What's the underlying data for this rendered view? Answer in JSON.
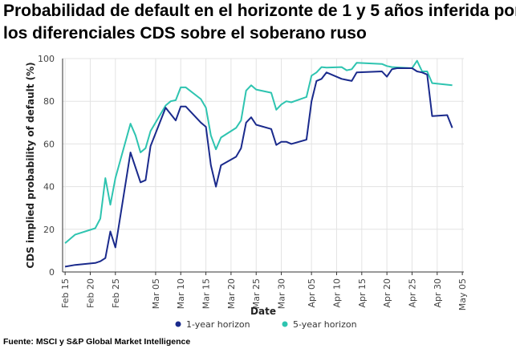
{
  "title_lines": [
    "Probabilidad de default en el horizonte de 1 y 5 años inferida por",
    "los diferenciales CDS sobre el soberano ruso"
  ],
  "source": "Fuente: MSCI y S&P Global Market Intelligence",
  "colors": {
    "one_year": "#1a2a8c",
    "five_year": "#2ec4b0",
    "grid": "#e3e3e3",
    "axis": "#333333"
  },
  "chart_data": {
    "type": "line",
    "xlabel": "Date",
    "ylabel": "CDS implied probability of default (%)",
    "ylim": [
      0,
      100
    ],
    "yticks": [
      0,
      20,
      40,
      60,
      80,
      100
    ],
    "grid": true,
    "legend_position": "bottom",
    "xticks": [
      "Feb 15",
      "Feb 20",
      "Feb 25",
      "Mar 05",
      "Mar 10",
      "Mar 15",
      "Mar 20",
      "Mar 25",
      "Mar 30",
      "Apr 05",
      "Apr 10",
      "Apr 15",
      "Apr 20",
      "Apr 25",
      "Apr 30",
      "May 05"
    ],
    "series": [
      {
        "name": "1-year horizon",
        "points": [
          [
            "Feb 15",
            2.5
          ],
          [
            "Feb 17",
            3.3
          ],
          [
            "Feb 21",
            4.2
          ],
          [
            "Feb 22",
            5
          ],
          [
            "Feb 23",
            6.5
          ],
          [
            "Feb 24",
            19
          ],
          [
            "Feb 25",
            11.5
          ],
          [
            "Feb 28",
            56
          ],
          [
            "Mar 02",
            42
          ],
          [
            "Mar 03",
            43
          ],
          [
            "Mar 04",
            59
          ],
          [
            "Mar 07",
            77
          ],
          [
            "Mar 09",
            71
          ],
          [
            "Mar 10",
            77.5
          ],
          [
            "Mar 11",
            77.5
          ],
          [
            "Mar 14",
            70
          ],
          [
            "Mar 15",
            68
          ],
          [
            "Mar 16",
            50
          ],
          [
            "Mar 17",
            40
          ],
          [
            "Mar 18",
            50
          ],
          [
            "Mar 21",
            54
          ],
          [
            "Mar 22",
            58
          ],
          [
            "Mar 23",
            70
          ],
          [
            "Mar 24",
            72.5
          ],
          [
            "Mar 25",
            69
          ],
          [
            "Mar 28",
            67
          ],
          [
            "Mar 29",
            59.5
          ],
          [
            "Mar 30",
            61
          ],
          [
            "Mar 31",
            61
          ],
          [
            "Apr 01",
            60
          ],
          [
            "Apr 04",
            62
          ],
          [
            "Apr 05",
            80
          ],
          [
            "Apr 06",
            89.5
          ],
          [
            "Apr 07",
            90.5
          ],
          [
            "Apr 08",
            93.5
          ],
          [
            "Apr 11",
            90.5
          ],
          [
            "Apr 12",
            90
          ],
          [
            "Apr 13",
            89.5
          ],
          [
            "Apr 14",
            93.5
          ],
          [
            "Apr 19",
            94
          ],
          [
            "Apr 20",
            91.5
          ],
          [
            "Apr 21",
            95
          ],
          [
            "Apr 22",
            95.5
          ],
          [
            "Apr 25",
            95.5
          ],
          [
            "Apr 26",
            94
          ],
          [
            "Apr 27",
            93.5
          ],
          [
            "Apr 28",
            92.5
          ],
          [
            "Apr 29",
            73
          ],
          [
            "May 02",
            73.5
          ],
          [
            "May 03",
            67.5
          ]
        ]
      },
      {
        "name": "5-year horizon",
        "points": [
          [
            "Feb 15",
            13.5
          ],
          [
            "Feb 17",
            17.5
          ],
          [
            "Feb 21",
            20.5
          ],
          [
            "Feb 22",
            25
          ],
          [
            "Feb 23",
            44
          ],
          [
            "Feb 24",
            31.5
          ],
          [
            "Feb 25",
            44
          ],
          [
            "Feb 28",
            69.5
          ],
          [
            "Mar 01",
            64
          ],
          [
            "Mar 02",
            56
          ],
          [
            "Mar 03",
            58
          ],
          [
            "Mar 04",
            66
          ],
          [
            "Mar 07",
            78
          ],
          [
            "Mar 08",
            80
          ],
          [
            "Mar 09",
            80.5
          ],
          [
            "Mar 10",
            86.5
          ],
          [
            "Mar 11",
            86.5
          ],
          [
            "Mar 14",
            81
          ],
          [
            "Mar 15",
            77
          ],
          [
            "Mar 16",
            64
          ],
          [
            "Mar 17",
            57.5
          ],
          [
            "Mar 18",
            63
          ],
          [
            "Mar 21",
            67.5
          ],
          [
            "Mar 22",
            71
          ],
          [
            "Mar 23",
            85
          ],
          [
            "Mar 24",
            87.5
          ],
          [
            "Mar 25",
            85.5
          ],
          [
            "Mar 28",
            84
          ],
          [
            "Mar 29",
            76
          ],
          [
            "Mar 30",
            78.5
          ],
          [
            "Mar 31",
            80
          ],
          [
            "Apr 01",
            79.5
          ],
          [
            "Apr 04",
            82
          ],
          [
            "Apr 05",
            92
          ],
          [
            "Apr 06",
            93.5
          ],
          [
            "Apr 07",
            96
          ],
          [
            "Apr 08",
            95.8
          ],
          [
            "Apr 11",
            96
          ],
          [
            "Apr 12",
            94.5
          ],
          [
            "Apr 13",
            95
          ],
          [
            "Apr 14",
            98
          ],
          [
            "Apr 19",
            97.5
          ],
          [
            "Apr 20",
            96.5
          ],
          [
            "Apr 21",
            96
          ],
          [
            "Apr 25",
            95.5
          ],
          [
            "Apr 26",
            99
          ],
          [
            "Apr 27",
            94
          ],
          [
            "Apr 28",
            94
          ],
          [
            "Apr 29",
            88.5
          ],
          [
            "May 03",
            87.5
          ]
        ]
      }
    ]
  }
}
